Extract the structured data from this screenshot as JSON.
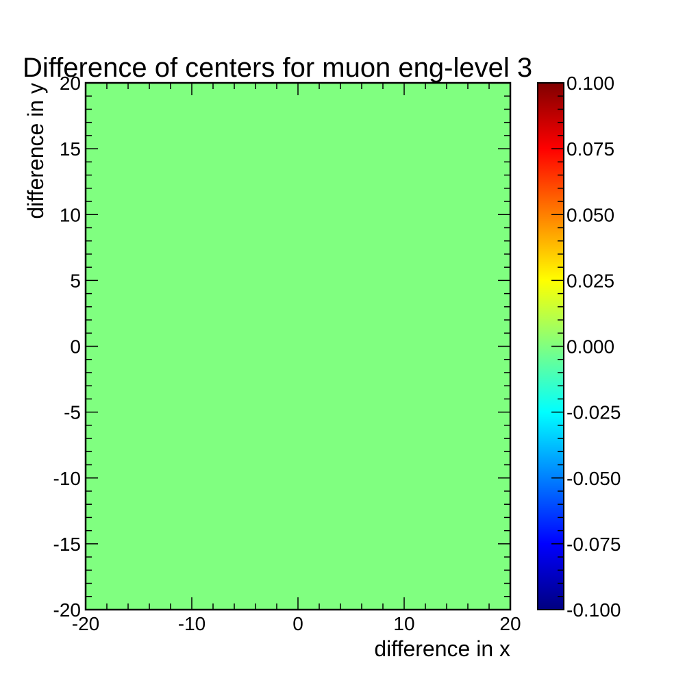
{
  "chart_data": {
    "type": "heatmap",
    "title": "Difference of centers for muon eng-level 3",
    "xlabel": "difference in x",
    "ylabel": "difference in y",
    "xlim": [
      -20,
      20
    ],
    "ylim": [
      -20,
      20
    ],
    "x_ticks": [
      "-20",
      "-10",
      "0",
      "10",
      "20"
    ],
    "y_ticks": [
      "-20",
      "-15",
      "-10",
      "-5",
      "0",
      "5",
      "10",
      "15",
      "20"
    ],
    "z_range": [
      -0.1,
      0.1
    ],
    "colorbar_ticks": [
      "-0.100",
      "-0.075",
      "-0.050",
      "-0.025",
      "0.000",
      "0.025",
      "0.050",
      "0.075",
      "0.100"
    ],
    "cells": [
      {
        "x_range": [
          -20,
          20
        ],
        "y_range": [
          -20,
          20
        ],
        "value": 0.0
      }
    ],
    "colormap": [
      "#000080",
      "#0000ff",
      "#0080ff",
      "#00ffff",
      "#80ff80",
      "#ffff00",
      "#ff8000",
      "#ff0000",
      "#800000"
    ],
    "grid": false
  }
}
